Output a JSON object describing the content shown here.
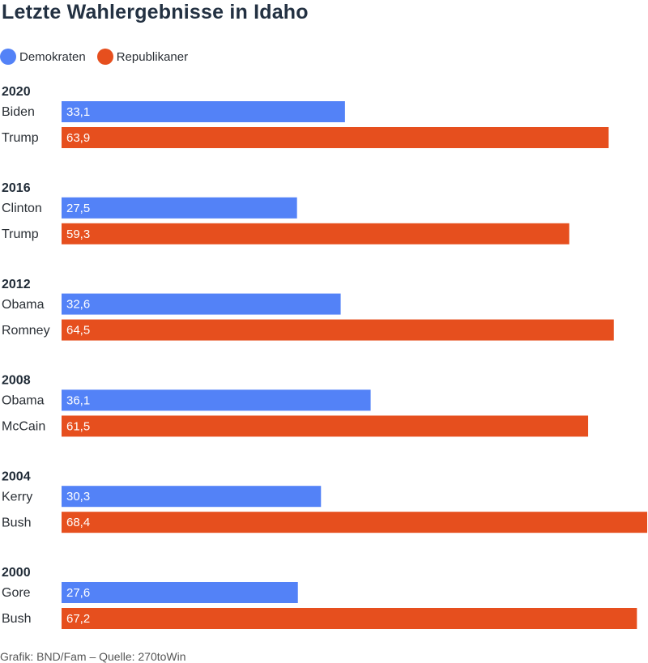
{
  "chart_data": {
    "type": "bar",
    "orientation": "horizontal",
    "title": "Letzte Wahlergebnisse in Idaho",
    "legend": [
      {
        "name": "Demokraten",
        "color": "#5382f7"
      },
      {
        "name": "Republikaner",
        "color": "#e64f1e"
      }
    ],
    "groups": [
      {
        "year": "2020",
        "entries": [
          {
            "candidate": "Biden",
            "party": "Demokraten",
            "value": 33.1,
            "label": "33,1"
          },
          {
            "candidate": "Trump",
            "party": "Republikaner",
            "value": 63.9,
            "label": "63,9"
          }
        ]
      },
      {
        "year": "2016",
        "entries": [
          {
            "candidate": "Clinton",
            "party": "Demokraten",
            "value": 27.5,
            "label": "27,5"
          },
          {
            "candidate": "Trump",
            "party": "Republikaner",
            "value": 59.3,
            "label": "59,3"
          }
        ]
      },
      {
        "year": "2012",
        "entries": [
          {
            "candidate": "Obama",
            "party": "Demokraten",
            "value": 32.6,
            "label": "32,6"
          },
          {
            "candidate": "Romney",
            "party": "Republikaner",
            "value": 64.5,
            "label": "64,5"
          }
        ]
      },
      {
        "year": "2008",
        "entries": [
          {
            "candidate": "Obama",
            "party": "Demokraten",
            "value": 36.1,
            "label": "36,1"
          },
          {
            "candidate": "McCain",
            "party": "Republikaner",
            "value": 61.5,
            "label": "61,5"
          }
        ]
      },
      {
        "year": "2004",
        "entries": [
          {
            "candidate": "Kerry",
            "party": "Demokraten",
            "value": 30.3,
            "label": "30,3"
          },
          {
            "candidate": "Bush",
            "party": "Republikaner",
            "value": 68.4,
            "label": "68,4"
          }
        ]
      },
      {
        "year": "2000",
        "entries": [
          {
            "candidate": "Gore",
            "party": "Demokraten",
            "value": 27.6,
            "label": "27,6"
          },
          {
            "candidate": "Bush",
            "party": "Republikaner",
            "value": 67.2,
            "label": "67,2"
          }
        ]
      }
    ],
    "xlim": [
      0,
      68.4
    ],
    "grid": false,
    "legend_position": "top-left"
  },
  "footer": "Grafik: BND/Fam – Quelle: 270toWin"
}
